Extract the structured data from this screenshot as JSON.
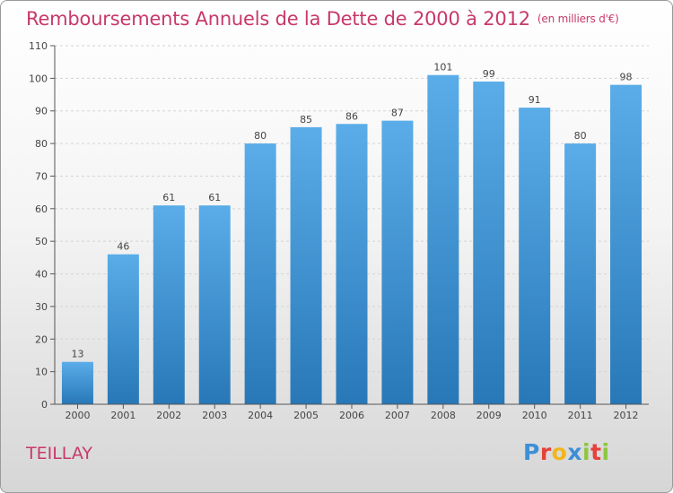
{
  "chart_data": {
    "type": "bar",
    "title": "Remboursements Annuels de la Dette de 2000 à 2012",
    "subtitle": "(en milliers d'€)",
    "categories": [
      "2000",
      "2001",
      "2002",
      "2003",
      "2004",
      "2005",
      "2006",
      "2007",
      "2008",
      "2009",
      "2010",
      "2011",
      "2012"
    ],
    "values": [
      13,
      46,
      61,
      61,
      80,
      85,
      86,
      87,
      101,
      99,
      91,
      80,
      98
    ],
    "ylim": [
      0,
      110
    ],
    "yticks": [
      0,
      10,
      20,
      30,
      40,
      50,
      60,
      70,
      80,
      90,
      100,
      110
    ],
    "grid": true,
    "data_labels": true,
    "bar_color_top": "#5aade8",
    "bar_color_bottom": "#2878b8"
  },
  "commune": "TEILLAY",
  "logo": {
    "text": "Proxiti",
    "letters": [
      "P",
      "r",
      "o",
      "x",
      "i",
      "t",
      "i"
    ]
  }
}
